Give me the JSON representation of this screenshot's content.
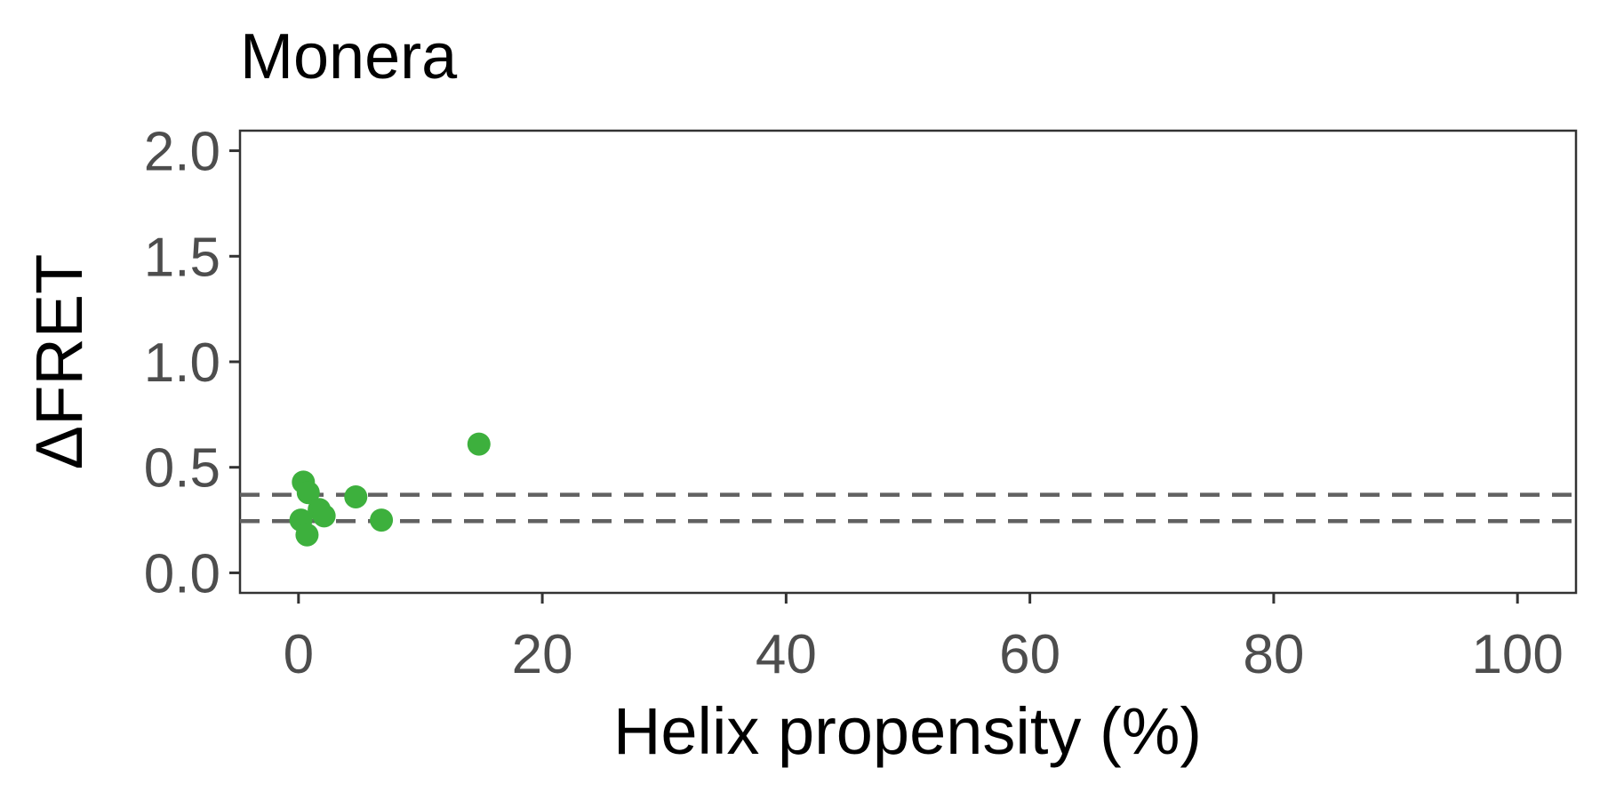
{
  "chart_data": {
    "type": "scatter",
    "title": "Monera",
    "xlabel": "Helix propensity (%)",
    "ylabel": "ΔFRET",
    "xlim": [
      -4.8,
      104.8
    ],
    "ylim": [
      -0.095,
      2.095
    ],
    "x_ticks": [
      0,
      20,
      40,
      60,
      80,
      100
    ],
    "x_tick_labels": [
      "0",
      "20",
      "40",
      "60",
      "80",
      "100"
    ],
    "y_ticks": [
      0.0,
      0.5,
      1.0,
      1.5,
      2.0
    ],
    "y_tick_labels": [
      "0.0",
      "0.5",
      "1.0",
      "1.5",
      "2.0"
    ],
    "grid": false,
    "legend": "none",
    "point_color": "#3db03d",
    "reference_lines": [
      {
        "axis": "y",
        "value": 0.37,
        "style": "dashed",
        "color": "#616161"
      },
      {
        "axis": "y",
        "value": 0.245,
        "style": "dashed",
        "color": "#616161"
      }
    ],
    "series": [
      {
        "points": [
          {
            "x": 0.4,
            "y": 0.43
          },
          {
            "x": 0.8,
            "y": 0.38
          },
          {
            "x": 0.2,
            "y": 0.25
          },
          {
            "x": 0.7,
            "y": 0.18
          },
          {
            "x": 1.7,
            "y": 0.3
          },
          {
            "x": 2.1,
            "y": 0.27
          },
          {
            "x": 4.7,
            "y": 0.36
          },
          {
            "x": 6.8,
            "y": 0.25
          },
          {
            "x": 14.8,
            "y": 0.61
          }
        ]
      }
    ]
  }
}
